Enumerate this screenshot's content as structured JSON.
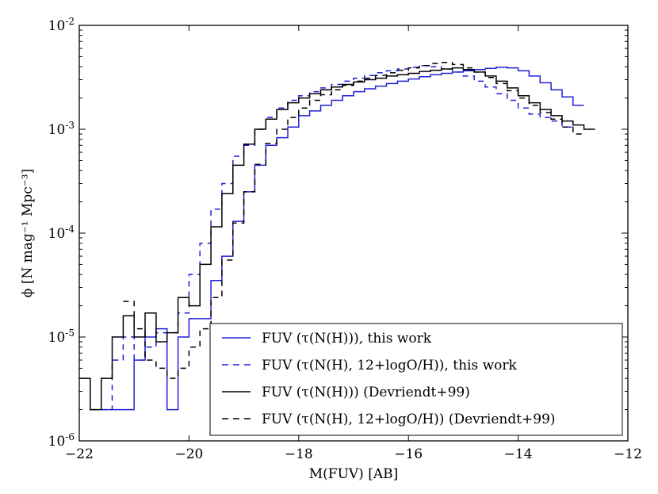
{
  "chart_data": {
    "type": "line",
    "step": true,
    "xlabel": "M(FUV) [AB]",
    "ylabel": "ϕ [N mag⁻¹ Mpc⁻³]",
    "xlim": [
      -22,
      -12
    ],
    "ylim": [
      1e-06,
      0.01
    ],
    "yscale": "log",
    "x_ticks": [
      -22,
      -20,
      -18,
      -16,
      -14,
      -12
    ],
    "x_tick_labels": [
      "−22",
      "−20",
      "−18",
      "−16",
      "−14",
      "−12"
    ],
    "y_ticks": [
      1e-06,
      1e-05,
      0.0001,
      0.001,
      0.01
    ],
    "y_tick_labels": [
      {
        "base": "10",
        "exp": "-6"
      },
      {
        "base": "10",
        "exp": "-5"
      },
      {
        "base": "10",
        "exp": "-4"
      },
      {
        "base": "10",
        "exp": "-3"
      },
      {
        "base": "10",
        "exp": "-2"
      }
    ],
    "legend_position": "bottom-right",
    "bin_edges": [
      -22.0,
      -21.8,
      -21.6,
      -21.4,
      -21.2,
      -21.0,
      -20.8,
      -20.6,
      -20.4,
      -20.2,
      -20.0,
      -19.8,
      -19.6,
      -19.4,
      -19.2,
      -19.0,
      -18.8,
      -18.6,
      -18.4,
      -18.2,
      -18.0,
      -17.8,
      -17.6,
      -17.4,
      -17.2,
      -17.0,
      -16.8,
      -16.6,
      -16.4,
      -16.2,
      -16.0,
      -15.8,
      -15.6,
      -15.4,
      -15.2,
      -15.0,
      -14.8,
      -14.6,
      -14.4,
      -14.2,
      -14.0,
      -13.8,
      -13.6,
      -13.4,
      -13.2,
      -13.0,
      -12.8,
      -12.6,
      -12.4,
      -12.2,
      -12.0
    ],
    "series": [
      {
        "name": "FUV (τ(N(H))), this work",
        "color": "#1f1fd6",
        "dash": "solid",
        "start": -21.6,
        "values": [
          2e-06,
          2e-06,
          2e-06,
          6e-06,
          1e-05,
          1.2e-05,
          2e-06,
          1e-05,
          1.5e-05,
          1.5e-05,
          3.5e-05,
          6e-05,
          0.00013,
          0.00025,
          0.00045,
          0.0007,
          0.00083,
          0.00105,
          0.00135,
          0.0015,
          0.0017,
          0.0019,
          0.0021,
          0.0023,
          0.00245,
          0.0026,
          0.00275,
          0.0029,
          0.00305,
          0.0032,
          0.00335,
          0.00345,
          0.00355,
          0.00365,
          0.00375,
          0.00385,
          0.00395,
          0.0039,
          0.00365,
          0.00325,
          0.0028,
          0.0024,
          0.00205,
          0.0017
        ]
      },
      {
        "name": "FUV (τ(N(H), 12+logO/H)), this work",
        "color": "#1f1fd6",
        "dash": "dashed",
        "start": -21.8,
        "values": [
          2e-06,
          2e-06,
          6e-06,
          1e-05,
          6e-06,
          8e-06,
          1.1e-05,
          1.1e-05,
          1.7e-05,
          4e-05,
          8e-05,
          0.00017,
          0.0003,
          0.00055,
          0.0007,
          0.001,
          0.0013,
          0.0016,
          0.0019,
          0.0021,
          0.0023,
          0.0025,
          0.0027,
          0.0029,
          0.0031,
          0.0033,
          0.0035,
          0.00365,
          0.0038,
          0.00395,
          0.0041,
          0.004,
          0.0038,
          0.00355,
          0.00325,
          0.0029,
          0.00255,
          0.0022,
          0.0019,
          0.0016,
          0.0014,
          0.0013,
          0.0012,
          0.00105
        ]
      },
      {
        "name": "FUV (τ(N(H))) (Devriendt+99)",
        "color": "#000000",
        "dash": "solid",
        "start": -22.0,
        "values": [
          4e-06,
          2e-06,
          4e-06,
          1e-05,
          1.6e-05,
          1e-05,
          1.7e-05,
          9e-06,
          1.1e-05,
          2.4e-05,
          2e-05,
          5e-05,
          0.000115,
          0.00024,
          0.00045,
          0.00072,
          0.001,
          0.00125,
          0.00155,
          0.0018,
          0.002,
          0.0022,
          0.0024,
          0.00255,
          0.0027,
          0.00285,
          0.003,
          0.0031,
          0.00325,
          0.00335,
          0.00345,
          0.0036,
          0.0037,
          0.0038,
          0.0039,
          0.00375,
          0.00355,
          0.00325,
          0.0029,
          0.0025,
          0.0021,
          0.0018,
          0.00155,
          0.00135,
          0.0012,
          0.0011,
          0.001
        ]
      },
      {
        "name": "FUV (τ(N(H), 12+logO/H)) (Devriendt+99)",
        "color": "#000000",
        "dash": "dashed",
        "start": -21.2,
        "values": [
          2.2e-05,
          1.2e-05,
          6e-06,
          5e-06,
          4e-06,
          5e-06,
          8e-06,
          1.2e-05,
          2.4e-05,
          5.5e-05,
          0.000125,
          0.00025,
          0.00046,
          0.00073,
          0.001,
          0.0013,
          0.0016,
          0.0019,
          0.00215,
          0.0024,
          0.00265,
          0.0029,
          0.0031,
          0.0033,
          0.0035,
          0.0037,
          0.0039,
          0.0041,
          0.0043,
          0.0044,
          0.0042,
          0.0039,
          0.00355,
          0.00315,
          0.00275,
          0.00235,
          0.002,
          0.0017,
          0.00145,
          0.00125,
          0.00105,
          0.0009
        ]
      }
    ]
  }
}
